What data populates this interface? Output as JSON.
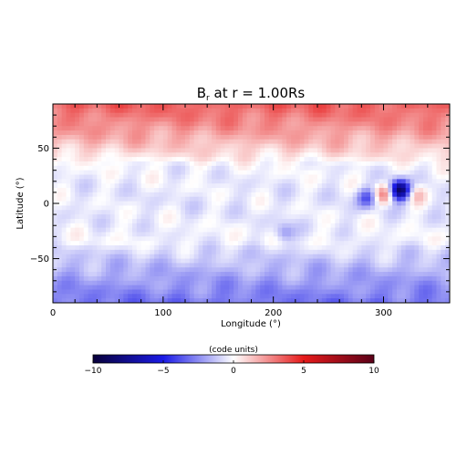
{
  "chart_data": {
    "type": "heatmap",
    "title": "B",
    "title_sub": "r",
    "title_rest": " at r = 1.00Rs",
    "xlabel": "Longitude (°)",
    "ylabel": "Latitude (°)",
    "xlim": [
      0,
      360
    ],
    "ylim": [
      -90,
      90
    ],
    "x_ticks": [
      0,
      100,
      200,
      300
    ],
    "y_ticks": [
      -50,
      0,
      50
    ],
    "x_tick_labels": [
      "0",
      "100",
      "200",
      "300"
    ],
    "y_tick_labels": [
      "−50",
      "0",
      "50"
    ],
    "colorbar": {
      "label": "(code units)",
      "min": -10,
      "max": 10,
      "ticks": [
        -10,
        -5,
        0,
        5,
        10
      ],
      "tick_labels": [
        "−10",
        "−5",
        "0",
        "5",
        "10"
      ],
      "colormap": [
        "#08003a",
        "#1a1ae6",
        "#ffffff",
        "#e61a1a",
        "#5a0018"
      ]
    },
    "field_features": {
      "north_polar_value": 3.5,
      "south_polar_value": -3.0,
      "spots": [
        {
          "lon": 315,
          "lat": 12,
          "value": -9.0
        },
        {
          "lon": 285,
          "lat": 5,
          "value": -3.5
        },
        {
          "lon": 300,
          "lat": 8,
          "value": 3.5
        },
        {
          "lon": 330,
          "lat": 8,
          "value": 2.0
        },
        {
          "lon": 210,
          "lat": -27,
          "value": -2.0
        }
      ]
    }
  }
}
